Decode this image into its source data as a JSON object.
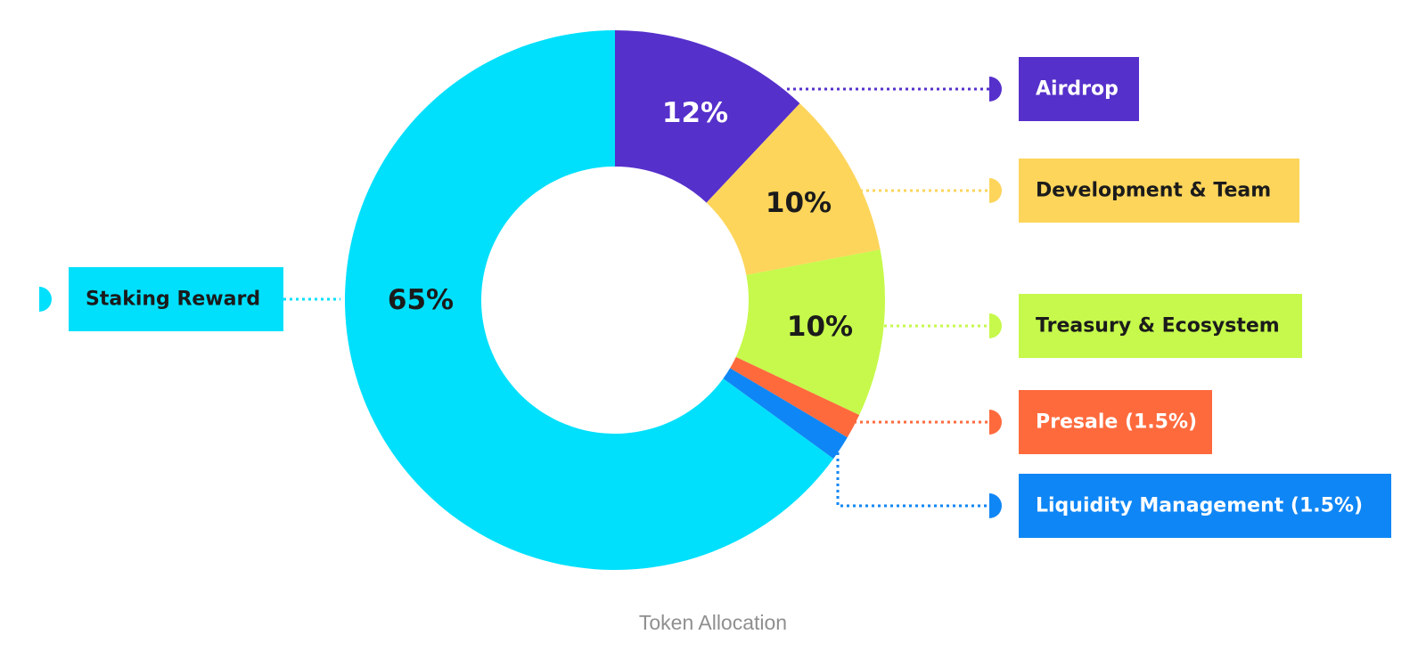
{
  "caption": "Token Allocation",
  "chart_data": {
    "type": "pie",
    "variant": "donut",
    "title": "",
    "legend_placement": "labels connected to slices by dotted leader lines",
    "slices": [
      {
        "legend": "Airdrop",
        "value": 12,
        "value_label": "12%",
        "color": "#5630cb",
        "text_color": "#ffffff",
        "value_text_color": "#ffffff"
      },
      {
        "legend": "Development & Team",
        "value": 10,
        "value_label": "10%",
        "color": "#fdd55b",
        "text_color": "#1b1b1b",
        "value_text_color": "#1b1b1b"
      },
      {
        "legend": "Treasury & Ecosystem",
        "value": 10,
        "value_label": "10%",
        "color": "#c6f94b",
        "text_color": "#1b1b1b",
        "value_text_color": "#1b1b1b"
      },
      {
        "legend": "Presale (1.5%)",
        "value": 1.5,
        "value_label": "",
        "color": "#ff6a3d",
        "text_color": "#ffffff",
        "value_text_color": "#ffffff"
      },
      {
        "legend": "Liquidity Management (1.5%)",
        "value": 1.5,
        "value_label": "",
        "color": "#0f86f5",
        "text_color": "#ffffff",
        "value_text_color": "#ffffff"
      },
      {
        "legend": "Staking Reward",
        "value": 65,
        "value_label": "65%",
        "color": "#00e0fc",
        "text_color": "#1b1b1b",
        "value_text_color": "#1b1b1b"
      }
    ]
  }
}
